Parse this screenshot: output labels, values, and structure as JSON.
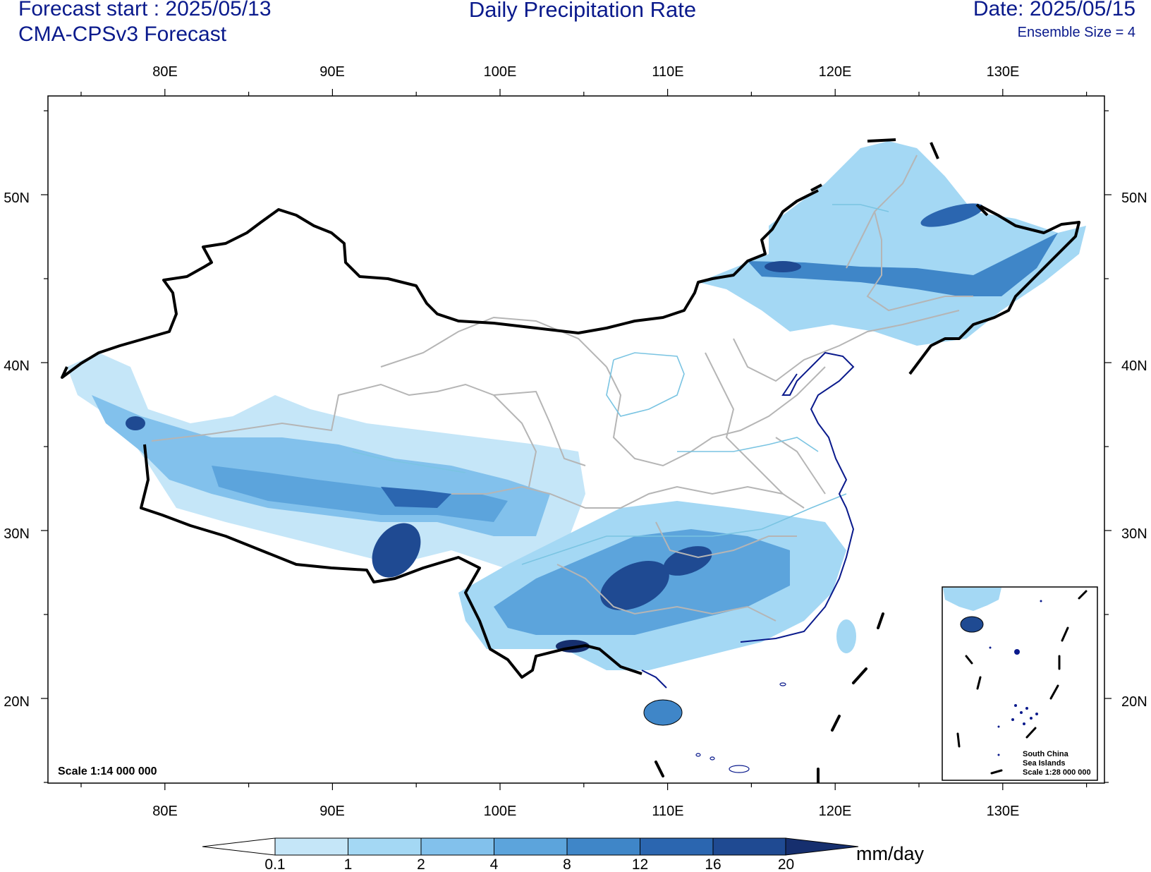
{
  "header": {
    "forecast_start": "Forecast start : 2025/05/13",
    "model": "CMA-CPSv3 Forecast",
    "title": "Daily Precipitation Rate",
    "date": "Date: 2025/05/15",
    "ensemble": "Ensemble Size = 4"
  },
  "map": {
    "lon_labels": [
      "80E",
      "90E",
      "100E",
      "110E",
      "120E",
      "130E"
    ],
    "lat_labels": [
      "50N",
      "40N",
      "30N",
      "20N"
    ],
    "scale": "Scale 1:14 000 000",
    "inset": {
      "line1": "South China",
      "line2": "Sea Islands",
      "line3": "Scale 1:28 000 000"
    }
  },
  "colorbar": {
    "levels": [
      "0.1",
      "1",
      "2",
      "4",
      "8",
      "12",
      "16",
      "20"
    ],
    "colors": [
      "#c5e6f8",
      "#a4d8f4",
      "#82c1ec",
      "#5ca4dc",
      "#3f86c8",
      "#2b66b0",
      "#1f4a92",
      "#162f6e"
    ],
    "unit": "mm/day"
  }
}
